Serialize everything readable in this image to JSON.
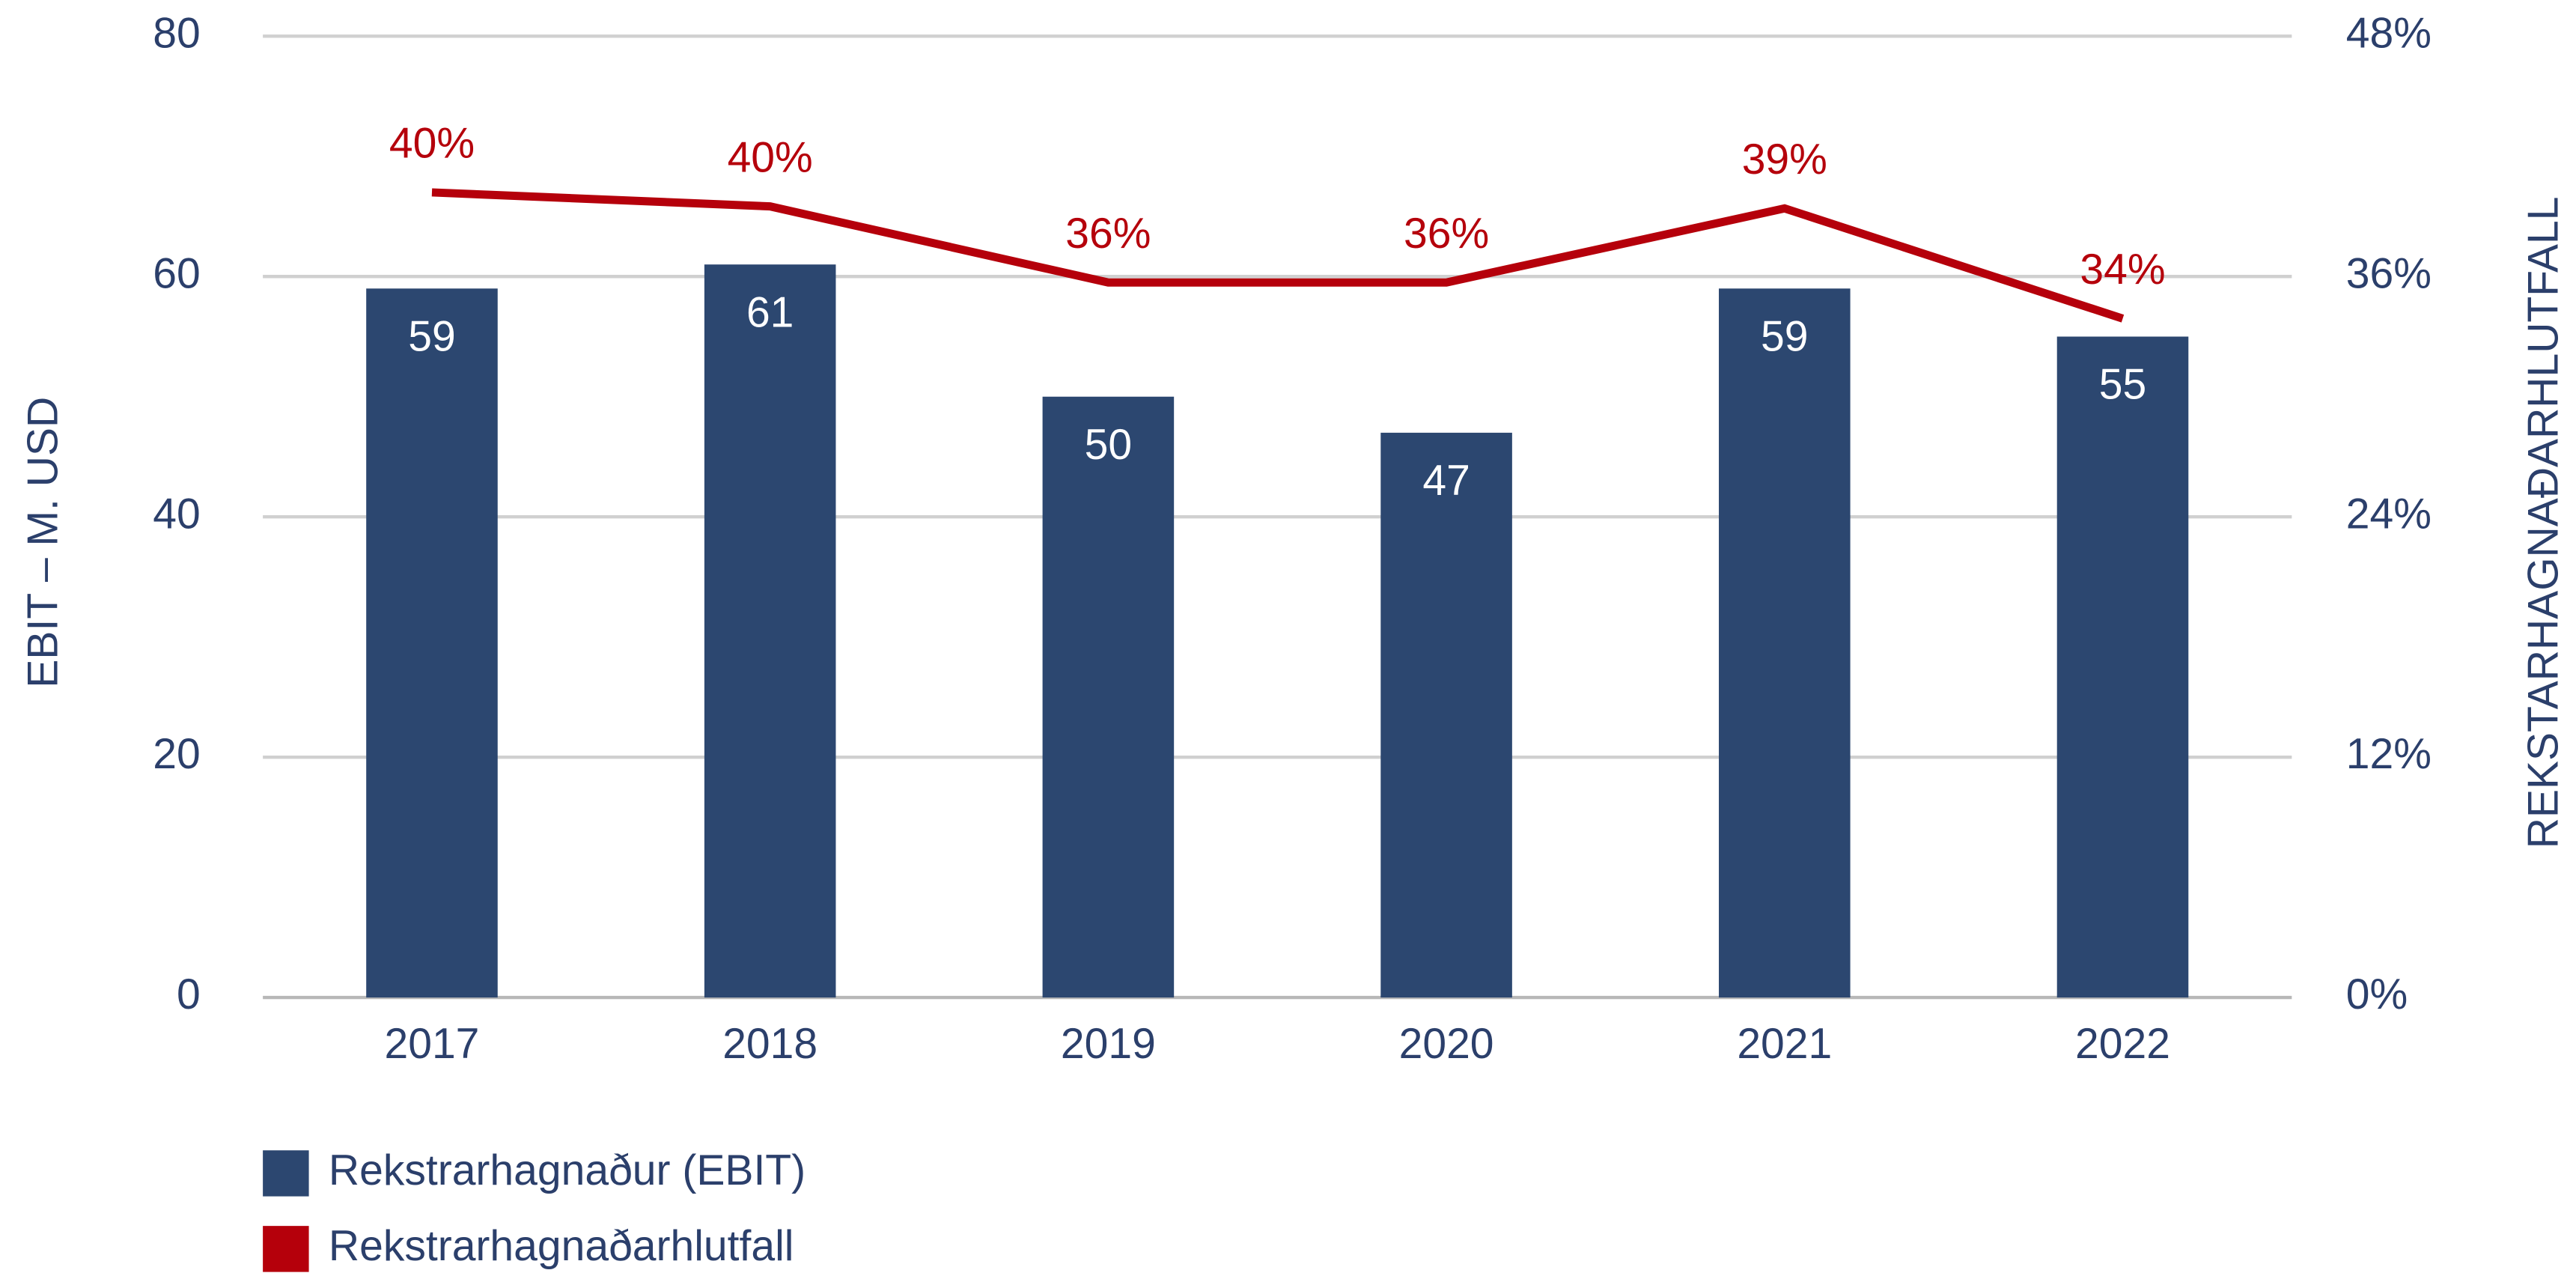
{
  "chart_data": {
    "type": "bar",
    "categories": [
      "2017",
      "2018",
      "2019",
      "2020",
      "2021",
      "2022"
    ],
    "series": [
      {
        "name": "Rekstrarhagnaður (EBIT)",
        "type": "bar",
        "color": "#2c4770",
        "values": [
          59,
          61,
          50,
          47,
          59,
          55
        ]
      },
      {
        "name": "Rekstrarhagnaðarhlutfall",
        "type": "line",
        "axis": "y2",
        "color": "#b5000b",
        "values": [
          40.2,
          39.5,
          35.7,
          35.7,
          39.4,
          33.9
        ],
        "value_labels": [
          "40%",
          "40%",
          "36%",
          "36%",
          "39%",
          "34%"
        ]
      }
    ],
    "ylabel": "EBIT – M. USD",
    "y2label": "REKSTARHAGNAÐARHLUTFALL",
    "ylim": [
      0,
      80
    ],
    "yticks": [
      0,
      20,
      40,
      60,
      80
    ],
    "y2lim": [
      0,
      48
    ],
    "y2ticks": [
      {
        "value": 0,
        "label": "0%"
      },
      {
        "value": 12,
        "label": "12%"
      },
      {
        "value": 24,
        "label": "24%"
      },
      {
        "value": 36,
        "label": "36%"
      },
      {
        "value": 48,
        "label": "48%"
      }
    ],
    "grid": true,
    "legend": "bottom-left"
  }
}
